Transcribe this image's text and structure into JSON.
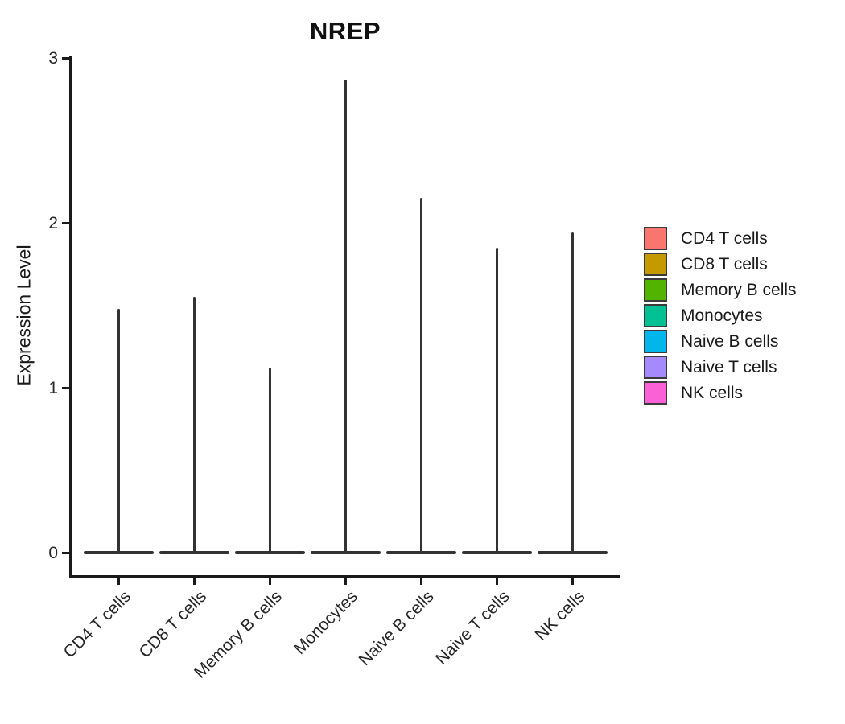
{
  "title": "NREP",
  "axes": {
    "y_label": "Expression Level",
    "y_ticks": [
      0,
      1,
      2,
      3
    ],
    "x_tick_angle_deg": 45
  },
  "legend": {
    "position": "right",
    "entries": [
      {
        "label": "CD4 T cells",
        "color": "#F8766D"
      },
      {
        "label": "CD8 T cells",
        "color": "#C49A00"
      },
      {
        "label": "Memory B cells",
        "color": "#53B400"
      },
      {
        "label": "Monocytes",
        "color": "#00C094"
      },
      {
        "label": "Naive B cells",
        "color": "#00B6EB"
      },
      {
        "label": "Naive T cells",
        "color": "#A58AFF"
      },
      {
        "label": "NK cells",
        "color": "#FB61D7"
      }
    ]
  },
  "chart_data": {
    "type": "violin",
    "title": "NREP",
    "xlabel": "",
    "ylabel": "Expression Level",
    "ylim": [
      0,
      3
    ],
    "y_ticks": [
      0,
      1,
      2,
      3
    ],
    "grid": false,
    "legend_position": "right",
    "categories": [
      "CD4 T cells",
      "CD8 T cells",
      "Memory B cells",
      "Monocytes",
      "Naive B cells",
      "Naive T cells",
      "NK cells"
    ],
    "colors": [
      "#F8766D",
      "#C49A00",
      "#53B400",
      "#00C094",
      "#00B6EB",
      "#A58AFF",
      "#FB61D7"
    ],
    "series": [
      {
        "name": "CD4 T cells",
        "density_mode": 0,
        "max_expression": 1.48
      },
      {
        "name": "CD8 T cells",
        "density_mode": 0,
        "max_expression": 1.55
      },
      {
        "name": "Memory B cells",
        "density_mode": 0,
        "max_expression": 1.12
      },
      {
        "name": "Monocytes",
        "density_mode": 0,
        "max_expression": 2.87
      },
      {
        "name": "Naive B cells",
        "density_mode": 0,
        "max_expression": 2.15
      },
      {
        "name": "Naive T cells",
        "density_mode": 0,
        "max_expression": 1.85
      },
      {
        "name": "NK cells",
        "density_mode": 0,
        "max_expression": 1.94
      }
    ],
    "shape_note": "Ultra-thin violins: nearly all density flattened at expression 0 (wide flat base bar) with a pencil-thin spike up to the max expression value",
    "outline_color": "#333333"
  }
}
